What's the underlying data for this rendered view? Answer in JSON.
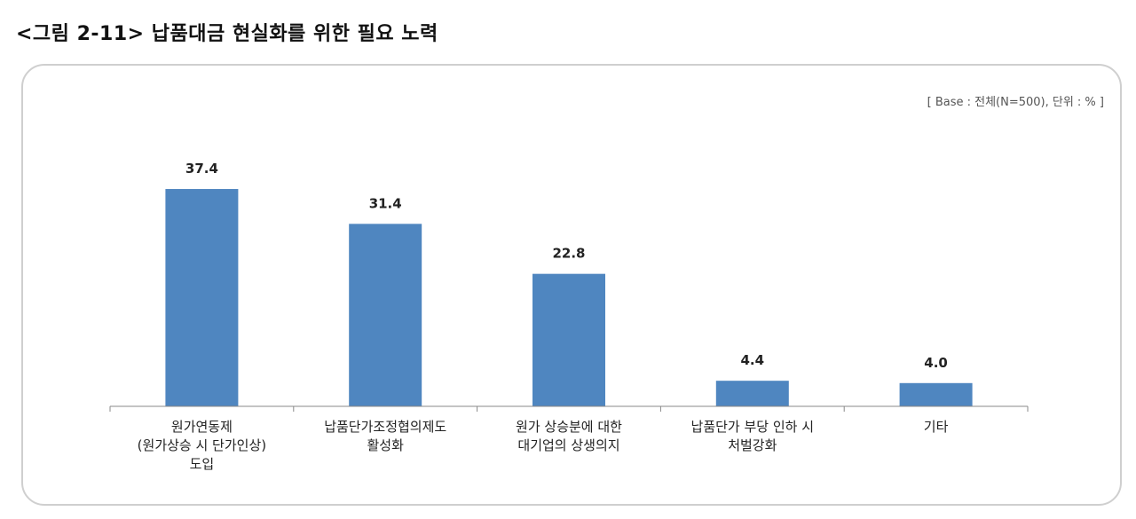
{
  "figure_title": "<그림 2-11> 납품대금 현실화를 위한 필요 노력",
  "base_note": "[ Base : 전체(N=500), 단위 : % ]",
  "colors": {
    "bar": "#4f86c0",
    "axis": "#888888"
  },
  "chart_data": {
    "type": "bar",
    "title": "",
    "xlabel": "",
    "ylabel": "",
    "ylim": [
      0,
      40
    ],
    "grid": false,
    "categories": [
      [
        "원가연동제",
        "(원가상승 시 단가인상)",
        "도입"
      ],
      [
        "납품단가조정협의제도",
        "활성화"
      ],
      [
        "원가 상승분에 대한",
        "대기업의 상생의지"
      ],
      [
        "납품단가 부당 인하 시",
        "처벌강화"
      ],
      [
        "기타"
      ]
    ],
    "values": [
      37.4,
      31.4,
      22.8,
      4.4,
      4.0
    ],
    "value_labels": [
      "37.4",
      "31.4",
      "22.8",
      "4.4",
      "4.0"
    ]
  }
}
